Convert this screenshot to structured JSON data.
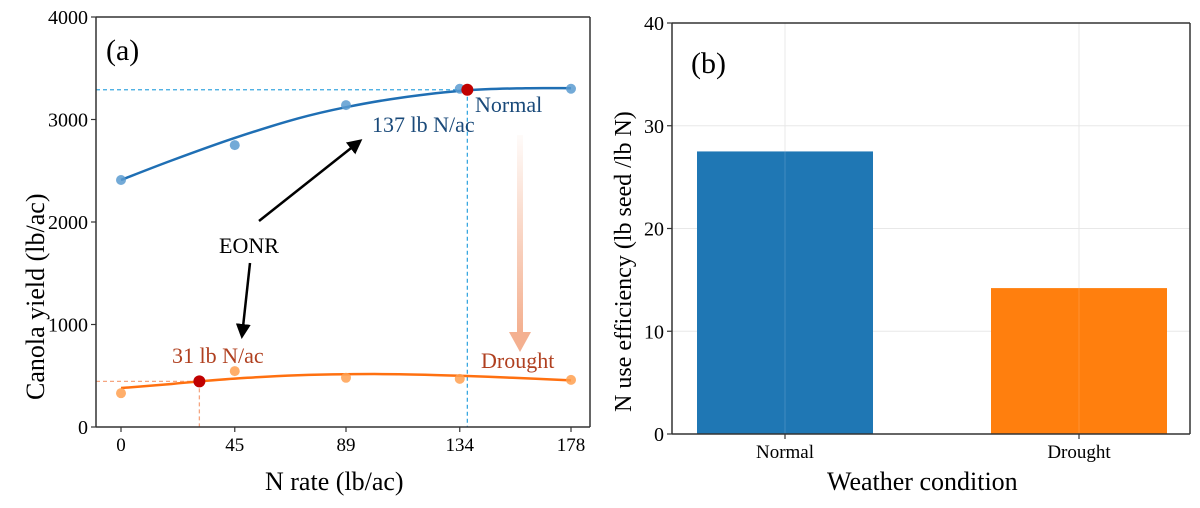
{
  "chart_data": [
    {
      "panel_label": "(a)",
      "type": "scatter",
      "title": "",
      "xlabel": "N rate (lb/ac)",
      "ylabel": "Canola yield (lb/ac)",
      "xlim": [
        -8,
        186
      ],
      "ylim": [
        0,
        4000
      ],
      "xticks": [
        0,
        45,
        89,
        134,
        178
      ],
      "yticks": [
        0,
        1000,
        2000,
        3000,
        4000
      ],
      "grid": false,
      "series": [
        {
          "name": "Normal",
          "color": "#1f6fb4",
          "point_color": "#5b9bd0",
          "x": [
            0,
            45,
            89,
            134,
            178
          ],
          "y": [
            2410,
            2750,
            3140,
            3300,
            3300
          ],
          "fit": [
            [
              0,
              2410
            ],
            [
              20,
              2600
            ],
            [
              45,
              2820
            ],
            [
              70,
              3010
            ],
            [
              89,
              3120
            ],
            [
              110,
              3210
            ],
            [
              137,
              3285
            ],
            [
              160,
              3305
            ],
            [
              178,
              3305
            ]
          ],
          "eonr": {
            "x": 137,
            "y": 3290,
            "label": "137 lb N/ac"
          },
          "label": "Normal"
        },
        {
          "name": "Drought",
          "color": "#ff7010",
          "point_color": "#ffa050",
          "x": [
            0,
            45,
            89,
            134,
            178
          ],
          "y": [
            330,
            545,
            480,
            470,
            460
          ],
          "fit": [
            [
              0,
              380
            ],
            [
              20,
              420
            ],
            [
              31,
              445
            ],
            [
              50,
              480
            ],
            [
              70,
              505
            ],
            [
              89,
              515
            ],
            [
              110,
              515
            ],
            [
              134,
              500
            ],
            [
              155,
              480
            ],
            [
              178,
              455
            ]
          ],
          "eonr": {
            "x": 31,
            "y": 445,
            "label": "31 lb N/ac"
          },
          "label": "Drought"
        }
      ],
      "annotations": {
        "eonr_text": "EONR",
        "eonr_marker_color": "#c00000",
        "normal_guide_color": "#3aa8e0",
        "drought_guide_color": "#f5a580",
        "shift_arrow_color": "#f4b090"
      }
    },
    {
      "panel_label": "(b)",
      "type": "bar",
      "title": "",
      "xlabel": "Weather condition",
      "ylabel": "N use efficiency (lb seed /lb N)",
      "categories": [
        "Normal",
        "Drought"
      ],
      "values": [
        27.5,
        14.2
      ],
      "colors": [
        "#1f77b4",
        "#ff7f0e"
      ],
      "ylim": [
        0,
        40
      ],
      "yticks": [
        0,
        10,
        20,
        30,
        40
      ],
      "grid": true
    }
  ]
}
